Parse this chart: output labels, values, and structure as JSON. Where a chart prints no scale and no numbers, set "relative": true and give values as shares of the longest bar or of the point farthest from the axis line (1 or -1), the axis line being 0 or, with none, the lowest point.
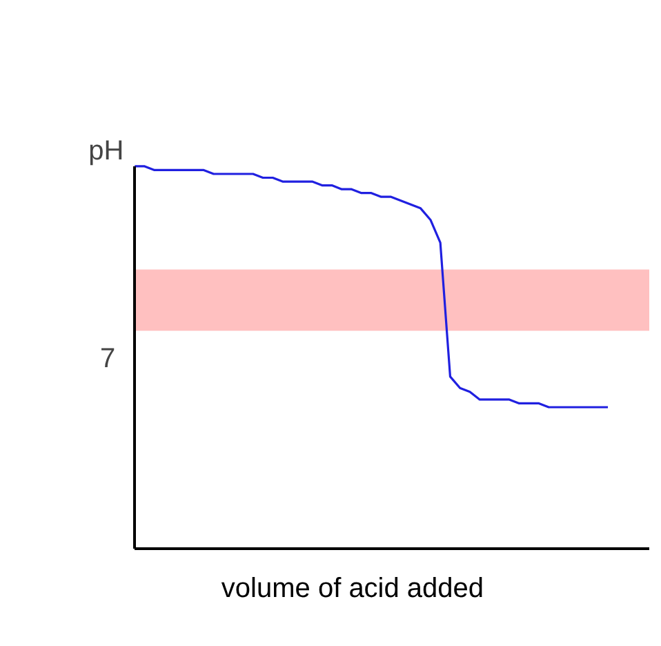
{
  "chart_data": {
    "type": "line",
    "xlabel": "volume of acid added",
    "ylabel": "pH",
    "relative": true,
    "categories": [
      null,
      null,
      null,
      null,
      null,
      null,
      null,
      null,
      null,
      null,
      null,
      null,
      null,
      null,
      null,
      null,
      null,
      null,
      null,
      null,
      null,
      null,
      null,
      null,
      null,
      null,
      null,
      null,
      null,
      null,
      null,
      null,
      null,
      null,
      null,
      null,
      null,
      null,
      null,
      null,
      null,
      null,
      null,
      null,
      null,
      null,
      null,
      null,
      null
    ],
    "series": [
      {
        "color": "#2020e0",
        "values": [
          1.0,
          1.0,
          0.99,
          0.99,
          0.99,
          0.99,
          0.99,
          0.99,
          0.98,
          0.98,
          0.98,
          0.98,
          0.98,
          0.97,
          0.97,
          0.96,
          0.96,
          0.96,
          0.96,
          0.95,
          0.95,
          0.94,
          0.94,
          0.93,
          0.93,
          0.92,
          0.92,
          0.91,
          0.9,
          0.89,
          0.86,
          0.8,
          0.45,
          0.42,
          0.41,
          0.39,
          0.39,
          0.39,
          0.39,
          0.38,
          0.38,
          0.38,
          0.37,
          0.37,
          0.37,
          0.37,
          0.37,
          0.37,
          0.37
        ]
      }
    ],
    "annotations": [
      "7"
    ],
    "bands": [
      {
        "axis": "y",
        "from": 0.57,
        "to": 0.73,
        "color": "#ffc0c0"
      }
    ]
  }
}
